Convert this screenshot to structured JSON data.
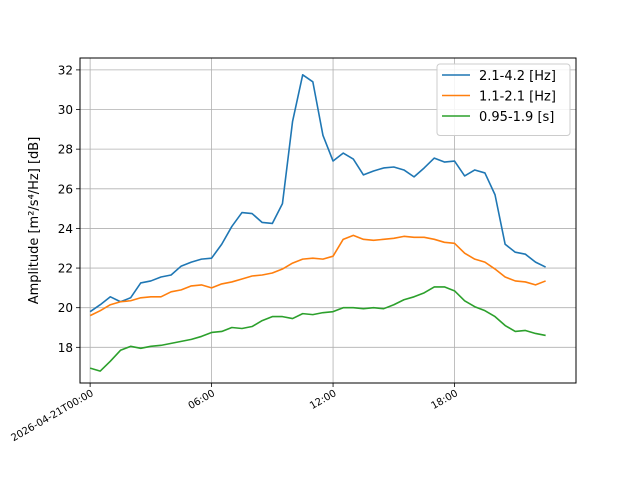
{
  "chart_data": {
    "type": "line",
    "title": "",
    "xlabel": "",
    "ylabel": "Amplitude [m²/s⁴/Hz] [dB]",
    "xlim": [
      -0.5,
      24.0
    ],
    "ylim": [
      16.2,
      32.6
    ],
    "grid": true,
    "legend_position": "top-right",
    "x_ticks": [
      {
        "value": 0,
        "label": "2026-04-21T00:00"
      },
      {
        "value": 6,
        "label": "06:00"
      },
      {
        "value": 12,
        "label": "12:00"
      },
      {
        "value": 18,
        "label": "18:00"
      }
    ],
    "y_ticks": [
      {
        "value": 18,
        "label": "18"
      },
      {
        "value": 20,
        "label": "20"
      },
      {
        "value": 22,
        "label": "22"
      },
      {
        "value": 24,
        "label": "24"
      },
      {
        "value": 26,
        "label": "26"
      },
      {
        "value": 28,
        "label": "28"
      },
      {
        "value": 30,
        "label": "30"
      },
      {
        "value": 32,
        "label": "32"
      }
    ],
    "x": [
      0,
      0.5,
      1,
      1.5,
      2,
      2.5,
      3,
      3.5,
      4,
      4.5,
      5,
      5.5,
      6,
      6.5,
      7,
      7.5,
      8,
      8.5,
      9,
      9.5,
      10,
      10.5,
      11,
      11.5,
      12,
      12.5,
      13,
      13.5,
      14,
      14.5,
      15,
      15.5,
      16,
      16.5,
      17,
      17.5,
      18,
      18.5,
      19,
      19.5,
      20,
      20.5,
      21,
      21.5,
      22,
      22.5
    ],
    "series": [
      {
        "name": "2.1-4.2 [Hz]",
        "color": "#1f77b4",
        "values": [
          19.8,
          20.15,
          20.55,
          20.3,
          20.5,
          21.25,
          21.35,
          21.55,
          21.65,
          22.1,
          22.3,
          22.45,
          22.5,
          23.2,
          24.1,
          24.8,
          24.75,
          24.3,
          24.25,
          25.25,
          29.4,
          31.75,
          31.4,
          28.7,
          27.4,
          27.8,
          27.5,
          26.7,
          26.9,
          27.05,
          27.1,
          26.95,
          26.6,
          27.05,
          27.55,
          27.35,
          27.4,
          26.65,
          26.95,
          26.8,
          25.7,
          23.2,
          22.8,
          22.7,
          22.3,
          22.05
        ]
      },
      {
        "name": "1.1-2.1 [Hz]",
        "color": "#ff7f0e",
        "values": [
          19.6,
          19.85,
          20.15,
          20.3,
          20.35,
          20.5,
          20.55,
          20.55,
          20.8,
          20.9,
          21.1,
          21.15,
          21.0,
          21.2,
          21.3,
          21.45,
          21.6,
          21.65,
          21.75,
          21.95,
          22.25,
          22.45,
          22.5,
          22.45,
          22.6,
          23.45,
          23.65,
          23.45,
          23.4,
          23.45,
          23.5,
          23.6,
          23.55,
          23.55,
          23.45,
          23.3,
          23.25,
          22.75,
          22.45,
          22.3,
          21.95,
          21.55,
          21.35,
          21.3,
          21.15,
          21.35
        ]
      },
      {
        "name": "0.95-1.9 [s]",
        "color": "#2ca02c",
        "values": [
          16.95,
          16.8,
          17.3,
          17.85,
          18.05,
          17.95,
          18.05,
          18.1,
          18.2,
          18.3,
          18.4,
          18.55,
          18.75,
          18.8,
          19.0,
          18.95,
          19.05,
          19.35,
          19.55,
          19.55,
          19.45,
          19.7,
          19.65,
          19.75,
          19.8,
          20.0,
          20.0,
          19.95,
          20.0,
          19.95,
          20.15,
          20.4,
          20.55,
          20.75,
          21.05,
          21.05,
          20.85,
          20.35,
          20.05,
          19.85,
          19.55,
          19.1,
          18.8,
          18.85,
          18.7,
          18.6
        ]
      }
    ]
  }
}
